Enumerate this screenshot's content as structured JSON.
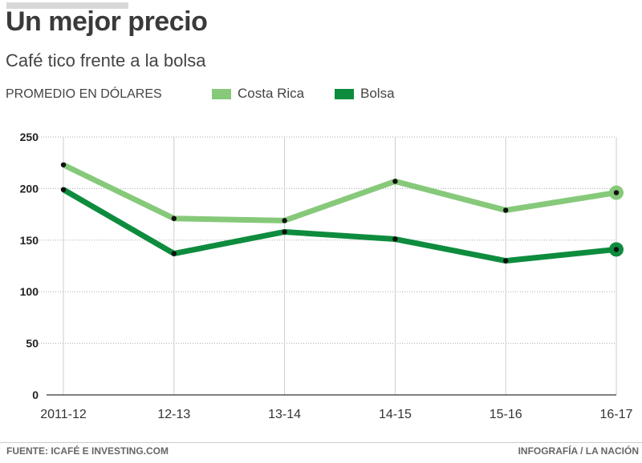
{
  "chart_data": {
    "type": "line",
    "title": "Un mejor precio",
    "subtitle": "Café tico frente a la bolsa",
    "ylabel": "PROMEDIO EN DÓLARES",
    "xlabel": "",
    "categories": [
      "2011-12",
      "12-13",
      "13-14",
      "14-15",
      "15-16",
      "16-17"
    ],
    "ylim": [
      0,
      250
    ],
    "yticks": [
      0,
      50,
      100,
      150,
      200,
      250
    ],
    "grid": true,
    "legend": "top",
    "series": [
      {
        "name": "Costa Rica",
        "color": "#86c97a",
        "values": [
          223,
          171,
          169,
          207,
          179,
          196
        ]
      },
      {
        "name": "Bolsa",
        "color": "#0e8c3e",
        "values": [
          199,
          137,
          158,
          151,
          130,
          141
        ]
      }
    ]
  },
  "footer": {
    "source": "FUENTE: ICAFÉ E INVESTING.COM",
    "credit": "INFOGRAFÍA / LA NACIÓN"
  }
}
